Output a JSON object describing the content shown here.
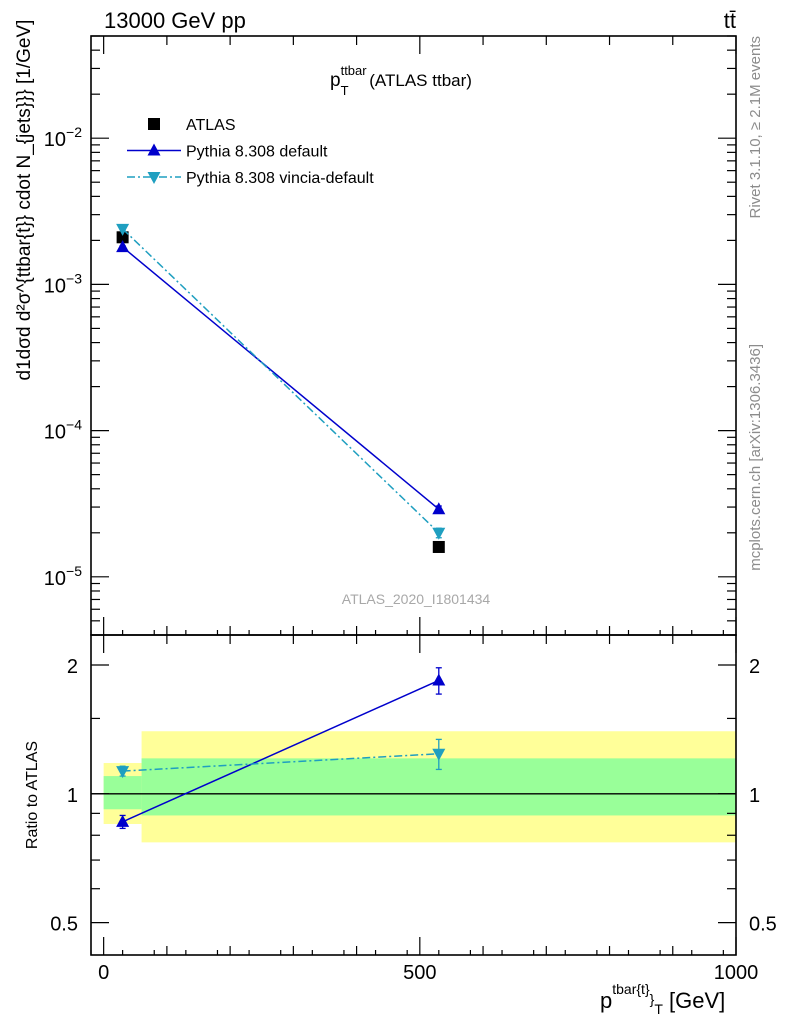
{
  "header": {
    "energy_label": "13000 GeV pp",
    "process_label": "tt̄"
  },
  "plot_title": {
    "main": "p",
    "sup": "ttbar",
    "sub": "T",
    "rest": " (ATLAS ttbar)"
  },
  "ylabel_main": "d1dσd d²σ^{ttbar{t}} cdot N_{jets}}} [1/GeV]",
  "ylabel_ratio": "Ratio to ATLAS",
  "xlabel": {
    "main": "p",
    "sup": "tbar{t}",
    "brace": "}",
    "sub": "T",
    "rest": " [GeV]"
  },
  "watermark": "ATLAS_2020_I1801434",
  "side_texts": {
    "rivet": "Rivet 3.1.10, ≥ 2.1M events",
    "mcplots": "mcplots.cern.ch [arXiv:1306.3436]"
  },
  "legend": [
    {
      "label": "ATLAS",
      "marker": "square",
      "color": "#000000"
    },
    {
      "label": "Pythia 8.308 default",
      "marker": "triangle-up",
      "color": "#0000cc"
    },
    {
      "label": "Pythia 8.308 vincia-default",
      "marker": "triangle-down",
      "color": "#1f9fc0"
    }
  ],
  "chart_data": [
    {
      "type": "line",
      "panel": "main",
      "x": [
        30,
        530
      ],
      "ylog": true,
      "ylim": [
        4e-06,
        0.05
      ],
      "xlim": [
        -20,
        1000
      ],
      "yticks": [
        {
          "v": 1e-05,
          "b": "10",
          "e": "−5"
        },
        {
          "v": 0.0001,
          "b": "10",
          "e": "−4"
        },
        {
          "v": 0.001,
          "b": "10",
          "e": "−3"
        },
        {
          "v": 0.01,
          "b": "10",
          "e": "−2"
        }
      ],
      "series": [
        {
          "name": "ATLAS",
          "values": [
            0.0021,
            1.6e-05
          ],
          "errors": [
            5e-05,
            5e-07
          ],
          "color": "#000000",
          "marker": "square",
          "line": "none"
        },
        {
          "name": "Pythia 8.308 default",
          "values": [
            0.0018,
            2.9e-05
          ],
          "errors": [
            4e-05,
            1.5e-06
          ],
          "color": "#0000cc",
          "marker": "triangle-up",
          "line": "solid"
        },
        {
          "name": "Pythia 8.308 vincia-default",
          "values": [
            0.0024,
            2e-05
          ],
          "errors": [
            4e-05,
            1.5e-06
          ],
          "color": "#1f9fc0",
          "marker": "triangle-down",
          "line": "dashdot"
        }
      ]
    },
    {
      "type": "line",
      "panel": "ratio",
      "x": [
        30,
        530
      ],
      "xlim": [
        -20,
        1000
      ],
      "ylog": true,
      "ylim": [
        0.42,
        2.35
      ],
      "xticks": [
        0,
        500,
        1000
      ],
      "yticks": [
        0.5,
        1,
        2
      ],
      "bands": [
        {
          "x0": 0,
          "x1": 60,
          "yellow": [
            0.85,
            1.18
          ],
          "green": [
            0.92,
            1.1
          ]
        },
        {
          "x0": 60,
          "x1": 1000,
          "yellow": [
            0.77,
            1.4
          ],
          "green": [
            0.89,
            1.21
          ]
        }
      ],
      "reference": 1,
      "series": [
        {
          "name": "Pythia 8.308 default",
          "values": [
            0.86,
            1.84
          ],
          "errors": [
            0.03,
            0.13
          ],
          "color": "#0000cc",
          "marker": "triangle-up",
          "line": "solid"
        },
        {
          "name": "Pythia 8.308 vincia-default",
          "values": [
            1.13,
            1.24
          ],
          "errors": [
            0.03,
            0.1
          ],
          "color": "#1f9fc0",
          "marker": "triangle-down",
          "line": "dashdot"
        }
      ]
    }
  ]
}
